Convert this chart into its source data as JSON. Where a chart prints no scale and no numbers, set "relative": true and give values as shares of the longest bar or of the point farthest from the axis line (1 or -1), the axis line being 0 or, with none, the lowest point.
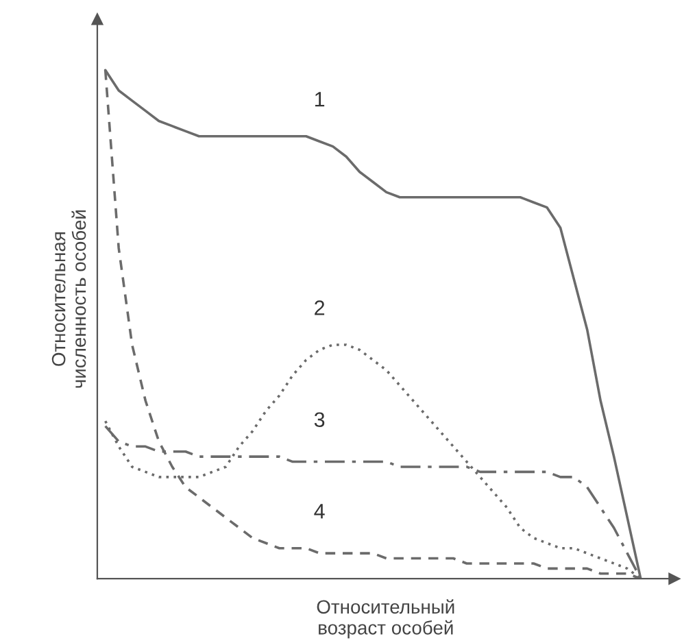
{
  "chart_data": {
    "type": "line",
    "relative": true,
    "xlabel": "Относительный\nвозраст особей",
    "ylabel": "Относительная\nчисленность особей",
    "marker": "none",
    "categories": [
      null,
      null,
      null,
      null,
      null,
      null,
      null,
      null,
      null,
      null,
      null,
      null,
      null,
      null,
      null,
      null,
      null,
      null,
      null,
      null,
      null,
      null,
      null,
      null,
      null,
      null,
      null,
      null,
      null,
      null,
      null,
      null,
      null,
      null,
      null,
      null,
      null,
      null,
      null,
      null,
      null
    ],
    "series": [
      {
        "name": "1",
        "color": "#6b6b6b",
        "line_style": "solid",
        "values": [
          1.0,
          0.96,
          0.94,
          0.92,
          0.9,
          0.89,
          0.88,
          0.87,
          0.87,
          0.87,
          0.87,
          0.87,
          0.87,
          0.87,
          0.87,
          0.87,
          0.86,
          0.85,
          0.83,
          0.8,
          0.78,
          0.76,
          0.75,
          0.75,
          0.75,
          0.75,
          0.75,
          0.75,
          0.75,
          0.75,
          0.75,
          0.75,
          0.74,
          0.73,
          0.69,
          0.59,
          0.49,
          0.35,
          0.24,
          0.12,
          0
        ]
      },
      {
        "name": "2",
        "color": "#6b6b6b",
        "line_style": "dotted",
        "values": [
          0.31,
          0.26,
          0.22,
          0.21,
          0.2,
          0.2,
          0.2,
          0.2,
          0.21,
          0.22,
          0.26,
          0.29,
          0.33,
          0.36,
          0.4,
          0.43,
          0.45,
          0.46,
          0.46,
          0.45,
          0.43,
          0.41,
          0.38,
          0.35,
          0.32,
          0.29,
          0.26,
          0.23,
          0.2,
          0.17,
          0.14,
          0.1,
          0.08,
          0.07,
          0.06,
          0.06,
          0.05,
          0.04,
          0.03,
          0.02,
          0
        ]
      },
      {
        "name": "3",
        "color": "#6b6b6b",
        "line_style": "dashdot",
        "values": [
          0.3,
          0.27,
          0.26,
          0.26,
          0.25,
          0.25,
          0.25,
          0.24,
          0.24,
          0.24,
          0.24,
          0.24,
          0.24,
          0.24,
          0.23,
          0.23,
          0.23,
          0.23,
          0.23,
          0.23,
          0.23,
          0.23,
          0.22,
          0.22,
          0.22,
          0.22,
          0.22,
          0.22,
          0.21,
          0.21,
          0.21,
          0.21,
          0.21,
          0.21,
          0.2,
          0.2,
          0.18,
          0.14,
          0.1,
          0.05,
          0
        ]
      },
      {
        "name": "4",
        "color": "#6b6b6b",
        "line_style": "dashed",
        "values": [
          1.0,
          0.65,
          0.46,
          0.35,
          0.27,
          0.22,
          0.18,
          0.16,
          0.14,
          0.12,
          0.1,
          0.08,
          0.07,
          0.06,
          0.06,
          0.06,
          0.05,
          0.05,
          0.05,
          0.05,
          0.05,
          0.04,
          0.04,
          0.04,
          0.04,
          0.04,
          0.04,
          0.03,
          0.03,
          0.03,
          0.03,
          0.03,
          0.03,
          0.02,
          0.02,
          0.02,
          0.02,
          0.01,
          0.01,
          0.01,
          0
        ]
      }
    ]
  }
}
